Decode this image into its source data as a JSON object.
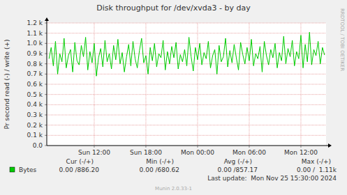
{
  "chart_data": {
    "type": "line",
    "title": "Disk throughput for /dev/xvda3 - by day",
    "y_label": "Pr second read (-) / write (+)",
    "side_text": "RRDTOOL / TOBI OETIKER",
    "footer": "Munin 2.0.33-1",
    "last_update": "Last update:  Mon Nov 25 15:30:00 2024",
    "grid": true,
    "legend": "bottom",
    "xlim": [
      6.49,
      38.92
    ],
    "xticks": [
      {
        "value": 12,
        "label": "Sun 12:00"
      },
      {
        "value": 18,
        "label": "Sun 18:00"
      },
      {
        "value": 24,
        "label": "Mon 00:00"
      },
      {
        "value": 30,
        "label": "Mon 06:00"
      },
      {
        "value": 36,
        "label": "Mon 12:00"
      }
    ],
    "ylim": [
      0,
      1200
    ],
    "yticks": [
      {
        "value": 0,
        "label": "0.0"
      },
      {
        "value": 100,
        "label": "0.1 k"
      },
      {
        "value": 200,
        "label": "0.2 k"
      },
      {
        "value": 300,
        "label": "0.3 k"
      },
      {
        "value": 400,
        "label": "0.4 k"
      },
      {
        "value": 500,
        "label": "0.5 k"
      },
      {
        "value": 600,
        "label": "0.6 k"
      },
      {
        "value": 700,
        "label": "0.7 k"
      },
      {
        "value": 800,
        "label": "0.8 k"
      },
      {
        "value": 900,
        "label": "0.9 k"
      },
      {
        "value": 1000,
        "label": "1.0 k"
      },
      {
        "value": 1100,
        "label": "1.1 k"
      },
      {
        "value": 1200,
        "label": "1.2 k"
      }
    ],
    "x": [
      6.75,
      7,
      7.25,
      7.5,
      7.75,
      8,
      8.25,
      8.5,
      8.75,
      9,
      9.25,
      9.5,
      9.75,
      10,
      10.25,
      10.5,
      10.75,
      11,
      11.25,
      11.5,
      11.75,
      12,
      12.25,
      12.5,
      12.75,
      13,
      13.25,
      13.5,
      13.75,
      14,
      14.25,
      14.5,
      14.75,
      15,
      15.25,
      15.5,
      15.75,
      16,
      16.25,
      16.5,
      16.75,
      17,
      17.25,
      17.5,
      17.75,
      18,
      18.25,
      18.5,
      18.75,
      19,
      19.25,
      19.5,
      19.75,
      20,
      20.25,
      20.5,
      20.75,
      21,
      21.25,
      21.5,
      21.75,
      22,
      22.25,
      22.5,
      22.75,
      23,
      23.25,
      23.5,
      23.75,
      24,
      24.25,
      24.5,
      24.75,
      25,
      25.25,
      25.5,
      25.75,
      26,
      26.25,
      26.5,
      26.75,
      27,
      27.25,
      27.5,
      27.75,
      28,
      28.25,
      28.5,
      28.75,
      29,
      29.25,
      29.5,
      29.75,
      30,
      30.25,
      30.5,
      30.75,
      31,
      31.25,
      31.5,
      31.75,
      32,
      32.25,
      32.5,
      32.75,
      33,
      33.25,
      33.5,
      33.75,
      34,
      34.25,
      34.5,
      34.75,
      35,
      35.25,
      35.5,
      35.75,
      36,
      36.25,
      36.5,
      36.75,
      37,
      37.25,
      37.5,
      37.75,
      38,
      38.25,
      38.5,
      38.75
    ],
    "series": [
      {
        "name": "Bytes",
        "color": "#00cc00",
        "values": [
          850,
          960,
          780,
          1020,
          700,
          900,
          820,
          1050,
          760,
          880,
          940,
          720,
          1010,
          830,
          790,
          980,
          870,
          1060,
          740,
          920,
          810,
          1000,
          680,
          860,
          950,
          770,
          1030,
          820,
          900,
          750,
          980,
          840,
          1040,
          800,
          910,
          720,
          870,
          990,
          780,
          1020,
          850,
          760,
          930,
          1050,
          810,
          880,
          700,
          960,
          830,
          1000,
          770,
          900,
          860,
          1030,
          740,
          920,
          800,
          970,
          860,
          1010,
          750,
          890,
          820,
          940,
          780,
          1060,
          870,
          730,
          960,
          840,
          1000,
          790,
          910,
          850,
          1020,
          760,
          880,
          940,
          700,
          980,
          820,
          870,
          1050,
          770,
          930,
          810,
          990,
          860,
          740,
          1010,
          890,
          800,
          960,
          830,
          1040,
          780,
          900,
          850,
          970,
          720,
          1020,
          880,
          790,
          940,
          860,
          1000,
          760,
          910,
          830,
          1070,
          800,
          950,
          870,
          1030,
          780,
          920,
          850,
          1080,
          760,
          990,
          820,
          1110,
          790,
          940,
          880,
          1020,
          800,
          960,
          886
        ]
      }
    ],
    "stats": {
      "headers": [
        "Cur (-/+)",
        "Min (-/+)",
        "Avg (-/+)",
        "Max (-/+)"
      ],
      "values": [
        "0.00 /886.20",
        "0.00 /680.62",
        "0.00 /857.17",
        "0.00 /  1.11k"
      ]
    }
  }
}
